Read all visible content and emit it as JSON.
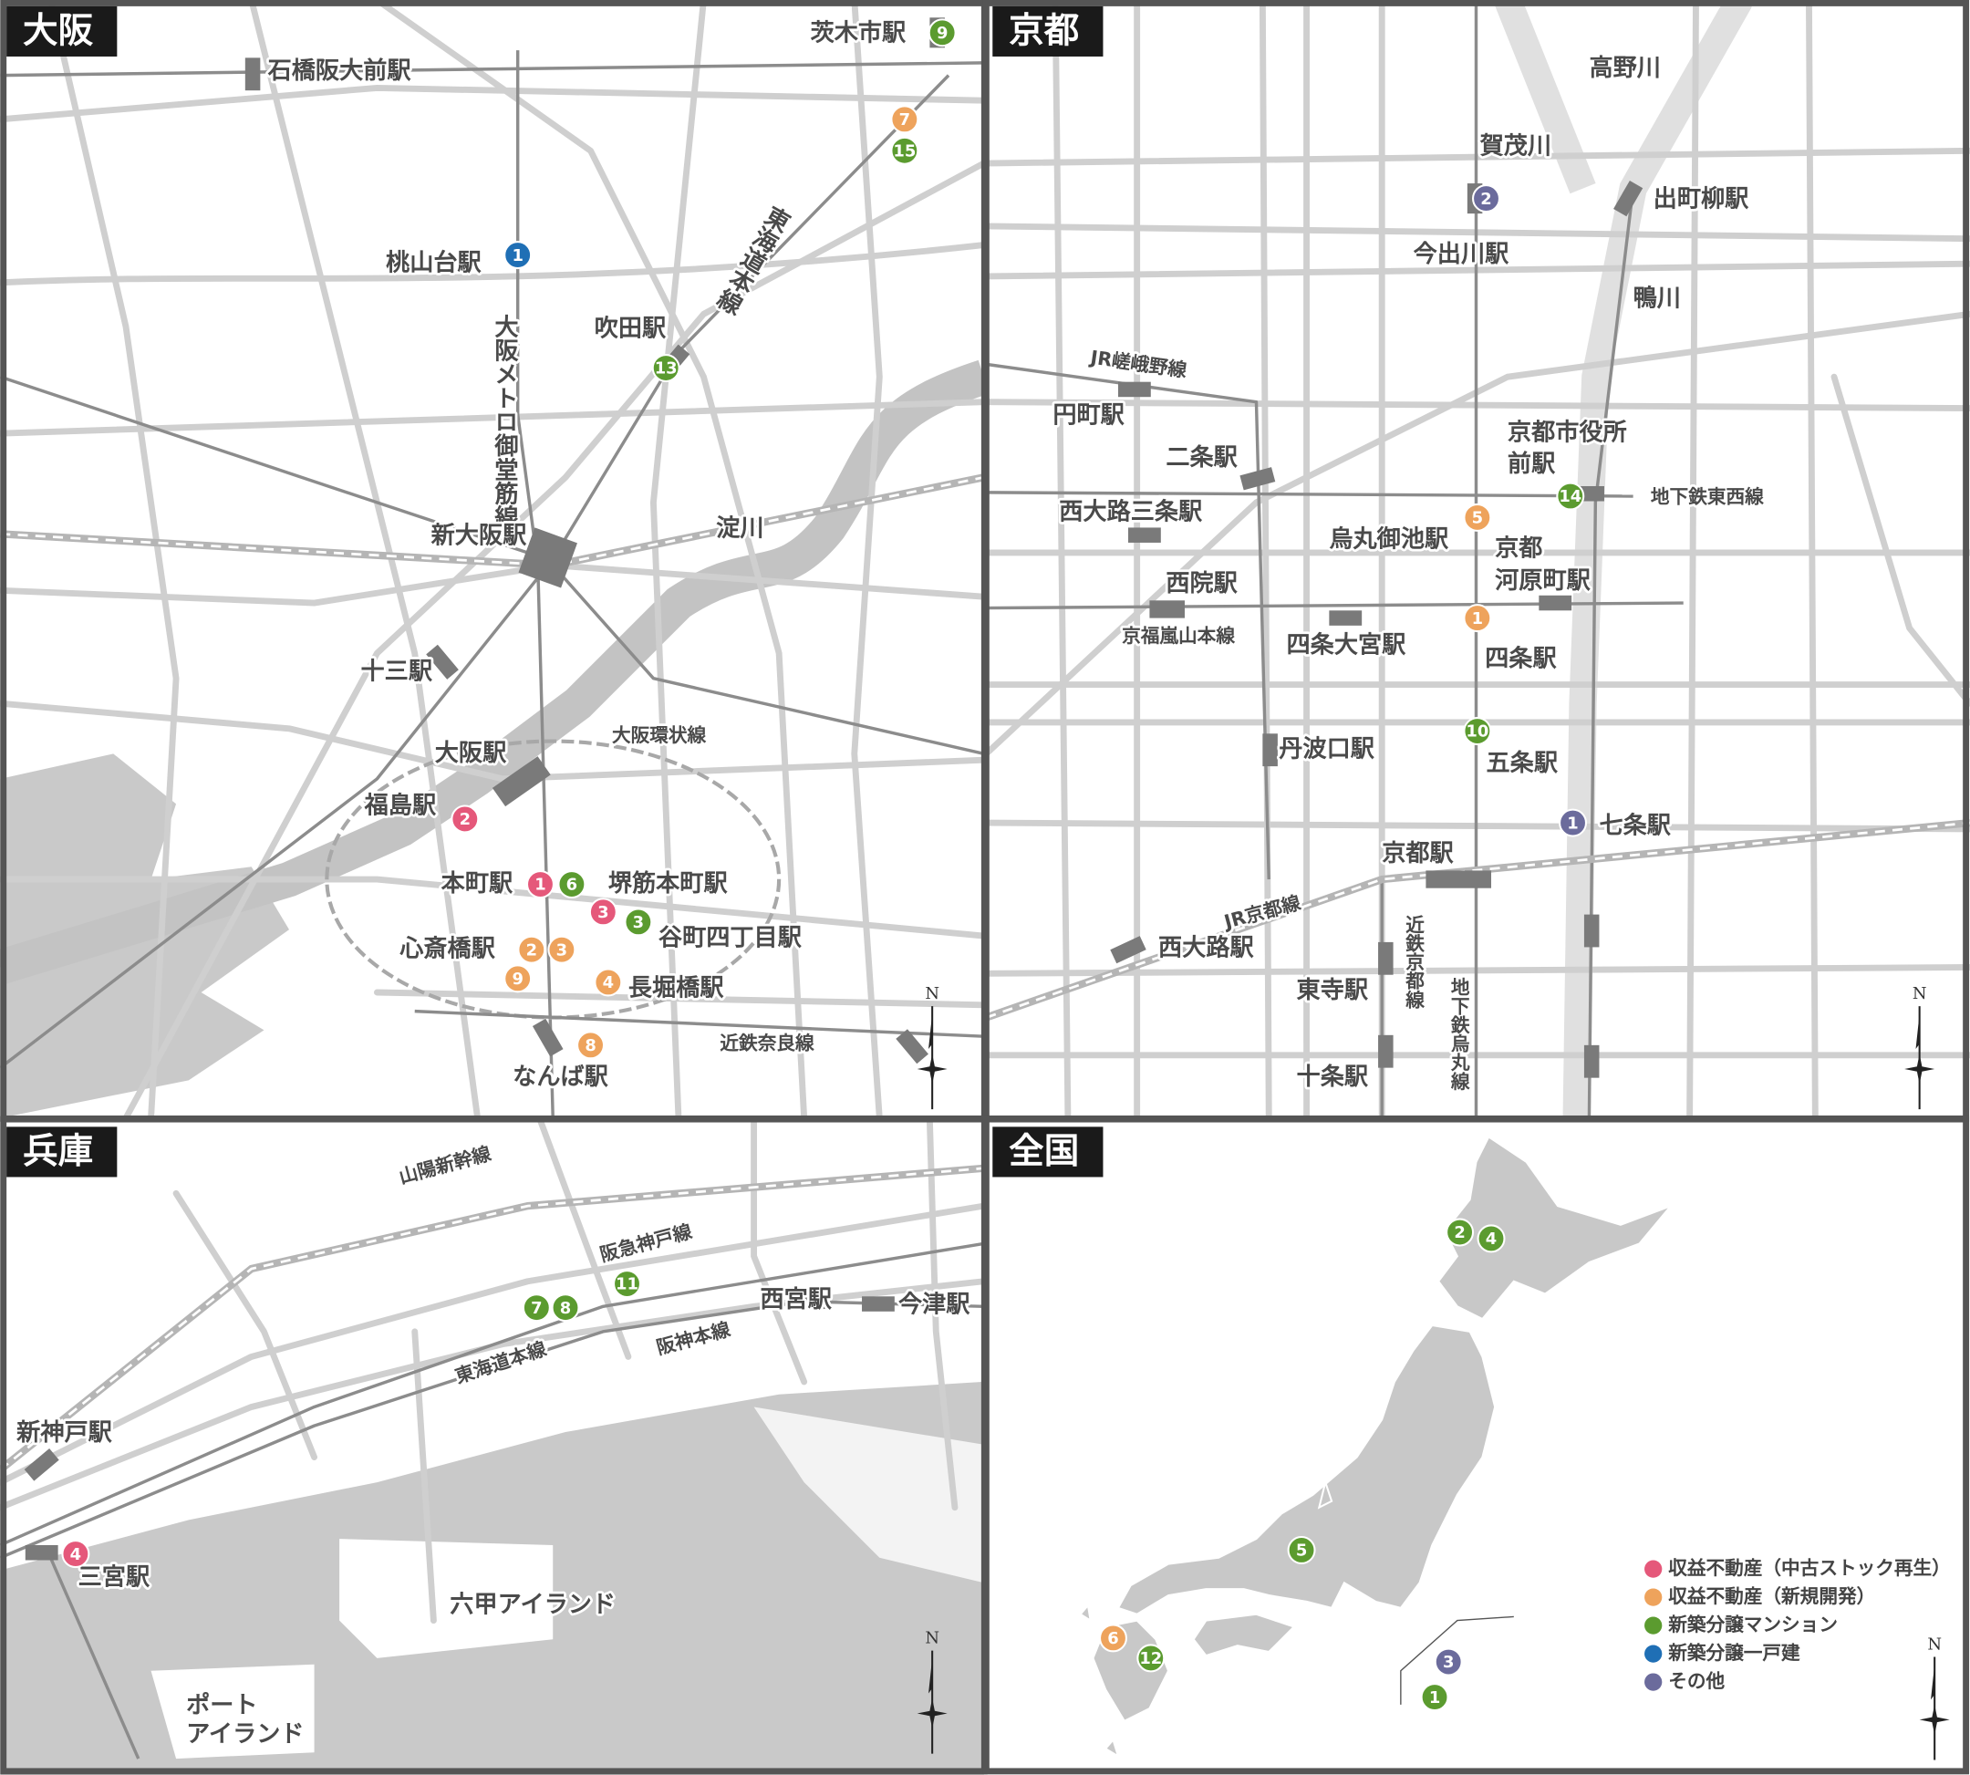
{
  "panels": [
    {
      "title": "大阪",
      "north": "N",
      "labels": [
        "石橋阪大前駅",
        "茨木市駅",
        "桃山台駅",
        "大阪メトロ御堂筋線",
        "東海道本線",
        "吹田駅",
        "新大阪駅",
        "淀川",
        "十三駅",
        "大阪環状線",
        "大阪駅",
        "福島駅",
        "本町駅",
        "堺筋本町駅",
        "谷町四丁目駅",
        "心斎橋駅",
        "長堀橋駅",
        "近鉄奈良線",
        "なんば駅"
      ],
      "markers": [
        {
          "label": "9",
          "color": "#5b9b2f"
        },
        {
          "label": "7",
          "color": "#eea35c"
        },
        {
          "label": "15",
          "color": "#5b9b2f"
        },
        {
          "label": "1",
          "color": "#1f6fb5"
        },
        {
          "label": "13",
          "color": "#5b9b2f"
        },
        {
          "label": "2",
          "color": "#e5587a"
        },
        {
          "label": "1",
          "color": "#e5587a"
        },
        {
          "label": "6",
          "color": "#5b9b2f"
        },
        {
          "label": "3",
          "color": "#e5587a"
        },
        {
          "label": "3",
          "color": "#5b9b2f"
        },
        {
          "label": "2",
          "color": "#eea35c"
        },
        {
          "label": "3",
          "color": "#eea35c"
        },
        {
          "label": "9",
          "color": "#eea35c"
        },
        {
          "label": "4",
          "color": "#eea35c"
        },
        {
          "label": "8",
          "color": "#eea35c"
        }
      ]
    },
    {
      "title": "京都",
      "north": "N",
      "labels": [
        "高野川",
        "賀茂川",
        "出町柳駅",
        "今出川駅",
        "鴨川",
        "JR嵯峨野線",
        "円町駅",
        "京都市役所",
        "前駅",
        "二条駅",
        "地下鉄東西線",
        "西大路三条駅",
        "烏丸御池駅",
        "京都",
        "河原町駅",
        "西院駅",
        "京福嵐山本線",
        "四条大宮駅",
        "四条駅",
        "丹波口駅",
        "五条駅",
        "七条駅",
        "京都駅",
        "JR京都線",
        "西大路駅",
        "近鉄京都線",
        "東寺駅",
        "地下鉄烏丸線",
        "十条駅"
      ],
      "markers": [
        {
          "label": "2",
          "color": "#6b6b9c"
        },
        {
          "label": "14",
          "color": "#5b9b2f"
        },
        {
          "label": "5",
          "color": "#eea35c"
        },
        {
          "label": "1",
          "color": "#eea35c"
        },
        {
          "label": "10",
          "color": "#5b9b2f"
        },
        {
          "label": "1",
          "color": "#6b6b9c"
        }
      ]
    },
    {
      "title": "兵庫",
      "north": "N",
      "labels": [
        "山陽新幹線",
        "阪急神戸線",
        "西宮駅",
        "今津駅",
        "東海道本線",
        "阪神本線",
        "新神戸駅",
        "三宮駅",
        "六甲アイランド",
        "ポート",
        "アイランド"
      ],
      "markers": [
        {
          "label": "7",
          "color": "#5b9b2f"
        },
        {
          "label": "8",
          "color": "#5b9b2f"
        },
        {
          "label": "11",
          "color": "#5b9b2f"
        },
        {
          "label": "4",
          "color": "#e5587a"
        }
      ]
    },
    {
      "title": "全国",
      "north": "N",
      "labels": [],
      "markers": [
        {
          "label": "2",
          "color": "#5b9b2f"
        },
        {
          "label": "4",
          "color": "#5b9b2f"
        },
        {
          "label": "5",
          "color": "#5b9b2f"
        },
        {
          "label": "6",
          "color": "#eea35c"
        },
        {
          "label": "12",
          "color": "#5b9b2f"
        },
        {
          "label": "3",
          "color": "#6b6b9c"
        },
        {
          "label": "1",
          "color": "#5b9b2f"
        }
      ]
    }
  ],
  "legend": [
    {
      "label": "収益不動産（中古ストック再生）",
      "color": "#e5587a"
    },
    {
      "label": "収益不動産（新規開発）",
      "color": "#eea35c"
    },
    {
      "label": "新築分譲マンション",
      "color": "#5b9b2f"
    },
    {
      "label": "新築分譲一戸建",
      "color": "#1f6fb5"
    },
    {
      "label": "その他",
      "color": "#6b6b9c"
    }
  ]
}
